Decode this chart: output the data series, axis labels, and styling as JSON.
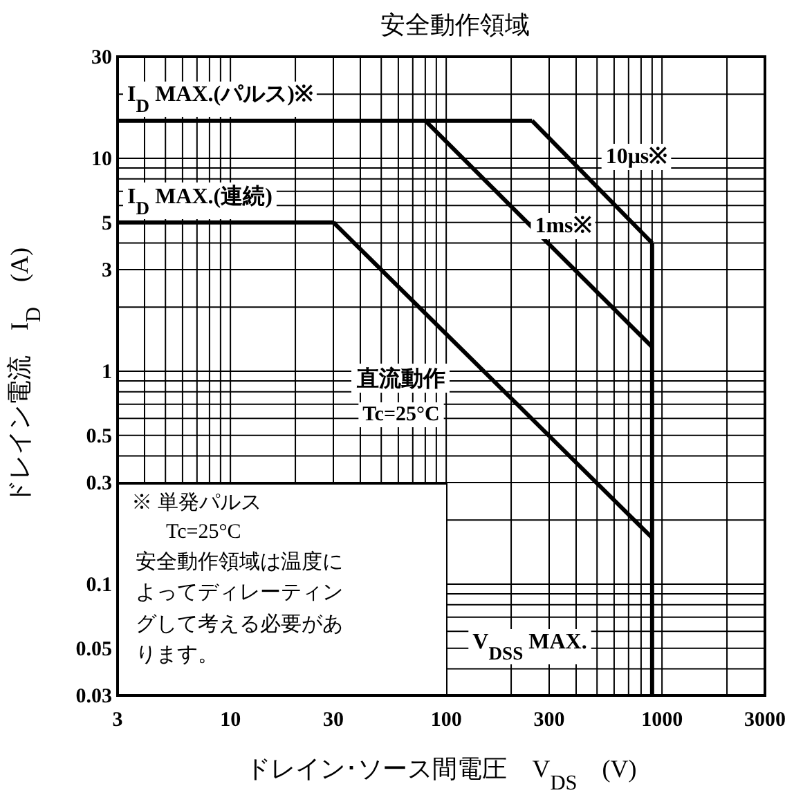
{
  "chart_data": {
    "type": "line",
    "title": "安全動作領域",
    "xlabel": "ドレイン･ソース間電圧　V$_{DS}$　(V)",
    "ylabel": "ドレイン電流　I$_{D}$　(A)",
    "log": "xy",
    "grid": true,
    "line_style": "solid",
    "color": "#000000",
    "xlim": [
      3,
      3000
    ],
    "ylim": [
      0.03,
      30
    ],
    "xticks": [
      3,
      10,
      30,
      100,
      300,
      1000,
      3000
    ],
    "yticks": [
      0.03,
      0.05,
      0.1,
      0.3,
      0.5,
      1,
      3,
      5,
      10,
      30
    ],
    "series": [
      {
        "name": "I$_{D}$ MAX.(パルス)※",
        "x": [
          3,
          250
        ],
        "values": [
          15,
          15
        ]
      },
      {
        "name": "10μs※",
        "x": [
          250,
          900
        ],
        "values": [
          15,
          4
        ]
      },
      {
        "name": "1ms※",
        "x": [
          80,
          900
        ],
        "values": [
          15,
          1.3
        ]
      },
      {
        "name": "I$_{D}$ MAX.(連続)",
        "x": [
          3,
          30
        ],
        "values": [
          5,
          5
        ]
      },
      {
        "name": "直流動作",
        "x": [
          30,
          900
        ],
        "values": [
          5,
          0.165
        ]
      },
      {
        "name": "V$_{DSS}$ MAX.",
        "x": [
          900,
          900
        ],
        "values": [
          4,
          0.03
        ]
      }
    ],
    "annotations": [
      "Tc=25°C",
      "※ 単発パルス",
      "Tc=25°C",
      "安全動作領域は温度に",
      "よってディレーティン",
      "グして考える必要があ",
      "ります。"
    ]
  }
}
